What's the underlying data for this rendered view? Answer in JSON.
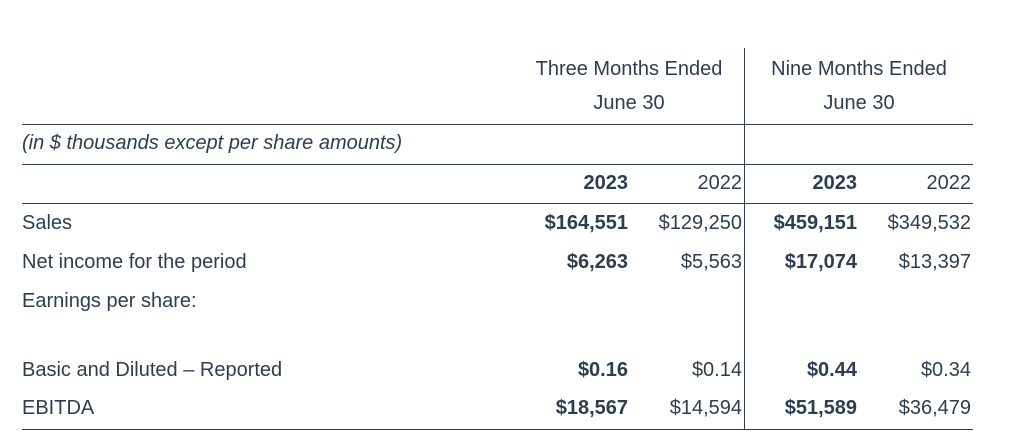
{
  "header": {
    "three_months": [
      "Three Months Ended",
      "June 30"
    ],
    "nine_months": [
      "Nine Months Ended",
      "June 30"
    ],
    "units_note": "(in $ thousands except per share amounts)",
    "years": [
      "2023",
      "2022",
      "2023",
      "2022"
    ]
  },
  "rows": [
    {
      "label": "Sales",
      "values": [
        "$164,551",
        "$129,250",
        "$459,151",
        "$349,532"
      ]
    },
    {
      "label": "Net income for the period",
      "values": [
        "$6,263",
        "$5,563",
        "$17,074",
        "$13,397"
      ]
    },
    {
      "label": "Earnings per share:",
      "values": [
        "",
        "",
        "",
        ""
      ]
    },
    {
      "label": "Basic and Diluted – Reported",
      "values": [
        "$0.16",
        "$0.14",
        "$0.44",
        "$0.34"
      ]
    },
    {
      "label": "EBITDA",
      "values": [
        "$18,567",
        "$14,594",
        "$51,589",
        "$36,479"
      ]
    }
  ]
}
